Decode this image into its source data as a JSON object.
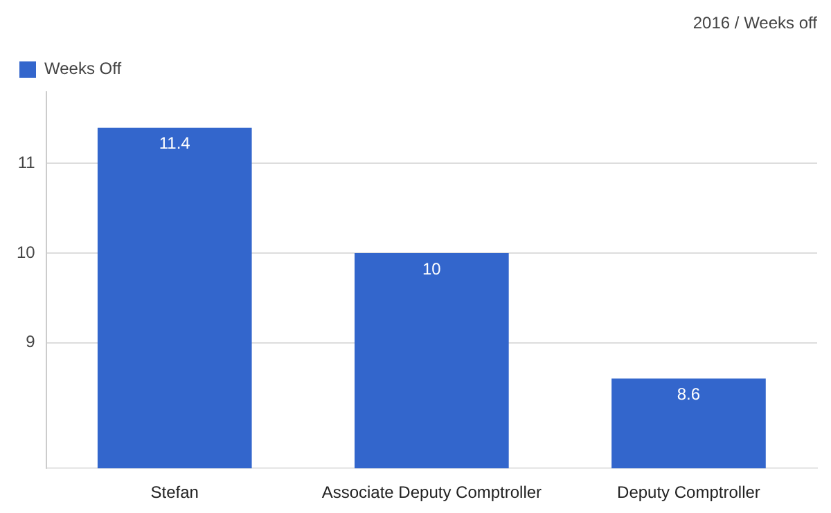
{
  "chart_data": {
    "type": "bar",
    "title": "2016 / Weeks off",
    "categories": [
      "Stefan",
      "Associate Deputy Comptroller",
      "Deputy Comptroller"
    ],
    "series": [
      {
        "name": "Weeks Off",
        "color": "#3366cc",
        "values": [
          11.4,
          10,
          8.6
        ]
      }
    ],
    "ylim": [
      7.6,
      11.8
    ],
    "yticks": [
      9,
      10,
      11
    ],
    "grid": "y",
    "legend": "top left",
    "data_labels": true
  }
}
